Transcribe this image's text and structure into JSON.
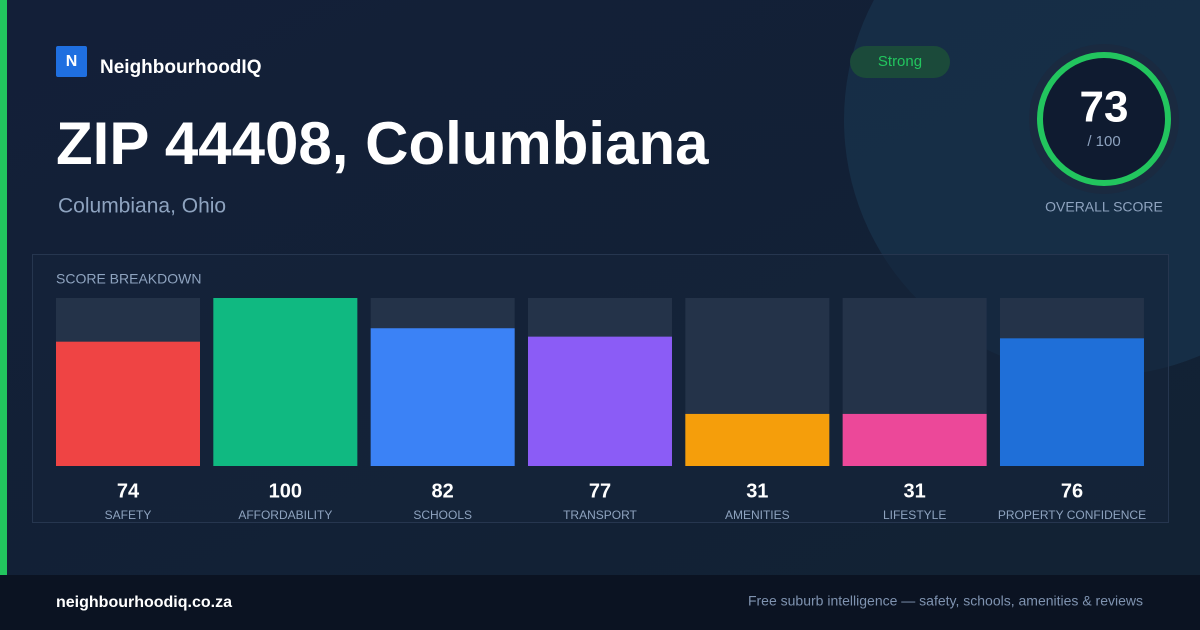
{
  "brand": {
    "logo": "N",
    "name": "NeighbourhoodIQ"
  },
  "header": {
    "title": "ZIP 44408, Columbiana",
    "subtitle": "Columbiana, Ohio",
    "badge": "Strong"
  },
  "score": {
    "value": "73",
    "out_of": "/ 100",
    "label": "OVERALL SCORE"
  },
  "chart_data": {
    "type": "bar",
    "title": "SCORE BREAKDOWN",
    "categories": [
      "SAFETY",
      "AFFORDABILITY",
      "SCHOOLS",
      "TRANSPORT",
      "AMENITIES",
      "LIFESTYLE",
      "PROPERTY CONFIDENCE"
    ],
    "values": [
      74,
      100,
      82,
      77,
      31,
      31,
      76
    ],
    "colors": [
      "#ef4444",
      "#10b981",
      "#3b82f6",
      "#8b5cf6",
      "#f59e0b",
      "#ec4899",
      "#1f6fd8"
    ],
    "ylim": [
      0,
      100
    ]
  },
  "footer": {
    "site": "neighbourhoodiq.co.za",
    "tagline": "Free suburb intelligence — safety, schools, amenities & reviews"
  }
}
